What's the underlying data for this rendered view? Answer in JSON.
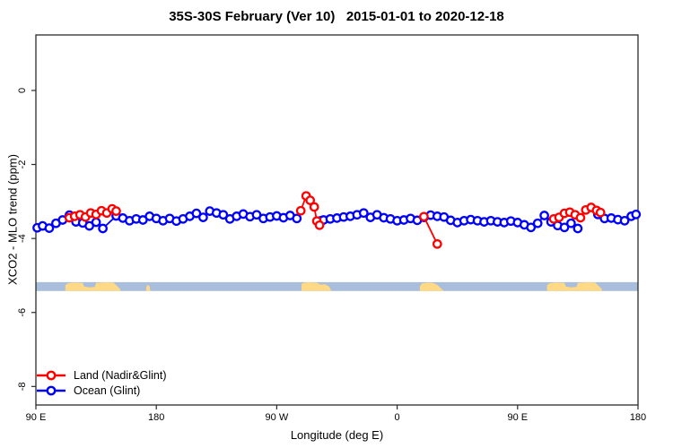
{
  "title": "35S-30S February (Ver 10)   2015-01-01 to 2020-12-18",
  "colors": {
    "land_series": "#ff0000",
    "ocean_series": "#0000ff",
    "strip_ocean": "#a9bedc",
    "strip_land": "#ffd985",
    "frame": "#2b2b2b",
    "text": "#000000"
  },
  "legend": {
    "items": [
      {
        "label": "Land (Nadir&Glint)",
        "color": "#ff0000"
      },
      {
        "label": "Ocean (Glint)",
        "color": "#0000ff"
      }
    ]
  },
  "chart_data": {
    "type": "line",
    "title": "35S-30S February (Ver 10)   2015-01-01 to 2020-12-18",
    "xlabel": "Longitude (deg E)",
    "ylabel": "XCO2 - MLO trend (ppm)",
    "x_axis": {
      "min": 90,
      "max": 540,
      "ticks": [
        {
          "lon": 90,
          "label": "90 E"
        },
        {
          "lon": 180,
          "label": "180"
        },
        {
          "lon": 270,
          "label": "90 W"
        },
        {
          "lon": 360,
          "label": "0"
        },
        {
          "lon": 450,
          "label": "90 E"
        },
        {
          "lon": 540,
          "label": "180"
        }
      ]
    },
    "y_axis": {
      "min": -8.5,
      "max": 1.5,
      "ticks": [
        {
          "value": 0,
          "label": "0"
        },
        {
          "value": -2,
          "label": "-2"
        },
        {
          "value": -4,
          "label": "-4"
        },
        {
          "value": -6,
          "label": "-6"
        },
        {
          "value": -8,
          "label": "-8"
        }
      ]
    },
    "legend_position": "bottom-left",
    "grid": false,
    "series": [
      {
        "name": "Ocean (Glint)",
        "color": "#0000ff",
        "marker": "open-circle",
        "segments": [
          [
            [
              91,
              -3.71
            ],
            [
              95,
              -3.66
            ],
            [
              100,
              -3.72
            ],
            [
              105,
              -3.59
            ],
            [
              110,
              -3.5
            ],
            [
              115,
              -3.37
            ],
            [
              120,
              -3.55
            ],
            [
              125,
              -3.58
            ],
            [
              130,
              -3.66
            ],
            [
              135,
              -3.56
            ],
            [
              140,
              -3.73
            ],
            [
              150,
              -3.39
            ],
            [
              155,
              -3.45
            ],
            [
              160,
              -3.52
            ],
            [
              165,
              -3.47
            ],
            [
              170,
              -3.5
            ],
            [
              175,
              -3.4
            ],
            [
              180,
              -3.46
            ],
            [
              185,
              -3.52
            ],
            [
              190,
              -3.46
            ],
            [
              195,
              -3.53
            ],
            [
              200,
              -3.47
            ],
            [
              205,
              -3.4
            ],
            [
              210,
              -3.32
            ],
            [
              215,
              -3.43
            ],
            [
              220,
              -3.26
            ],
            [
              225,
              -3.31
            ],
            [
              230,
              -3.36
            ],
            [
              235,
              -3.47
            ],
            [
              240,
              -3.4
            ],
            [
              245,
              -3.34
            ],
            [
              250,
              -3.41
            ],
            [
              255,
              -3.36
            ],
            [
              260,
              -3.46
            ],
            [
              265,
              -3.42
            ],
            [
              270,
              -3.39
            ],
            [
              275,
              -3.44
            ],
            [
              280,
              -3.38
            ],
            [
              285,
              -3.46
            ]
          ],
          [
            [
              303,
              -3.52
            ],
            [
              305,
              -3.5
            ],
            [
              310,
              -3.47
            ],
            [
              315,
              -3.45
            ],
            [
              320,
              -3.42
            ],
            [
              325,
              -3.4
            ],
            [
              330,
              -3.36
            ],
            [
              335,
              -3.31
            ],
            [
              340,
              -3.43
            ],
            [
              345,
              -3.36
            ],
            [
              350,
              -3.44
            ],
            [
              355,
              -3.47
            ],
            [
              360,
              -3.52
            ],
            [
              365,
              -3.5
            ],
            [
              370,
              -3.46
            ],
            [
              375,
              -3.51
            ],
            [
              380,
              -3.43
            ],
            [
              385,
              -3.37
            ],
            [
              390,
              -3.4
            ],
            [
              395,
              -3.42
            ],
            [
              400,
              -3.51
            ],
            [
              405,
              -3.57
            ],
            [
              410,
              -3.52
            ],
            [
              415,
              -3.49
            ],
            [
              420,
              -3.52
            ],
            [
              425,
              -3.55
            ],
            [
              430,
              -3.52
            ],
            [
              435,
              -3.55
            ],
            [
              440,
              -3.57
            ],
            [
              445,
              -3.53
            ],
            [
              450,
              -3.57
            ],
            [
              455,
              -3.63
            ],
            [
              460,
              -3.7
            ],
            [
              465,
              -3.59
            ],
            [
              470,
              -3.38
            ],
            [
              475,
              -3.55
            ],
            [
              480,
              -3.65
            ],
            [
              485,
              -3.7
            ],
            [
              490,
              -3.59
            ],
            [
              495,
              -3.73
            ]
          ],
          [
            [
              510,
              -3.35
            ],
            [
              515,
              -3.46
            ],
            [
              520,
              -3.45
            ],
            [
              525,
              -3.49
            ],
            [
              530,
              -3.52
            ],
            [
              535,
              -3.4
            ],
            [
              538.5,
              -3.35
            ]
          ]
        ]
      },
      {
        "name": "Land (Nadir&Glint)",
        "color": "#ff0000",
        "marker": "open-circle",
        "segments": [
          [
            [
              115,
              -3.44
            ],
            [
              119,
              -3.4
            ],
            [
              123,
              -3.36
            ],
            [
              127,
              -3.42
            ],
            [
              131,
              -3.31
            ],
            [
              135,
              -3.35
            ],
            [
              139,
              -3.25
            ],
            [
              143,
              -3.31
            ],
            [
              147,
              -3.2
            ],
            [
              150,
              -3.26
            ]
          ],
          [
            [
              288,
              -3.25
            ],
            [
              292,
              -2.85
            ],
            [
              295,
              -2.97
            ],
            [
              298,
              -3.15
            ],
            [
              300,
              -3.53
            ],
            [
              302,
              -3.64
            ]
          ],
          [
            [
              380,
              -3.41
            ],
            [
              390,
              -4.15
            ]
          ],
          [
            [
              477,
              -3.47
            ],
            [
              481,
              -3.43
            ],
            [
              485,
              -3.32
            ],
            [
              489,
              -3.29
            ],
            [
              493,
              -3.36
            ],
            [
              497,
              -3.44
            ],
            [
              501,
              -3.23
            ],
            [
              505,
              -3.16
            ],
            [
              509,
              -3.24
            ],
            [
              512,
              -3.3
            ]
          ]
        ]
      }
    ],
    "land_ocean_strip": {
      "description": "land/ocean map band for latitude 35S-30S",
      "y_range": [
        -5.18,
        -5.42
      ],
      "ocean_color": "#a9bedc",
      "land_color": "#ffd985",
      "land_patches": [
        {
          "name": "australia",
          "points": [
            [
              112,
              1
            ],
            [
              112,
              0.35
            ],
            [
              114,
              0.12
            ],
            [
              118,
              0.05
            ],
            [
              125,
              0.08
            ],
            [
              126,
              0.5
            ],
            [
              130,
              0.6
            ],
            [
              134,
              0.55
            ],
            [
              135,
              0.08
            ],
            [
              142,
              0.02
            ],
            [
              148,
              0.05
            ],
            [
              153,
              0.78
            ],
            [
              153,
              1
            ]
          ]
        },
        {
          "name": "new-zealand-tip",
          "points": [
            [
              172.5,
              1
            ],
            [
              172.5,
              0.55
            ],
            [
              173.5,
              0.28
            ],
            [
              175,
              0.5
            ],
            [
              175.5,
              1
            ]
          ]
        },
        {
          "name": "south-america",
          "points": [
            [
              288.5,
              1
            ],
            [
              288.5,
              0.2
            ],
            [
              290,
              0.08
            ],
            [
              293,
              0.02
            ],
            [
              300,
              0.06
            ],
            [
              303,
              0.28
            ],
            [
              306,
              0.22
            ],
            [
              309,
              0.5
            ],
            [
              310.5,
              0.85
            ],
            [
              310.5,
              1
            ]
          ]
        },
        {
          "name": "south-africa",
          "points": [
            [
              377,
              1
            ],
            [
              377,
              0.5
            ],
            [
              378.5,
              0.15
            ],
            [
              383,
              0.05
            ],
            [
              387,
              0.1
            ],
            [
              390,
              0.3
            ],
            [
              392,
              0.6
            ],
            [
              394.5,
              0.95
            ],
            [
              394.5,
              1
            ]
          ]
        },
        {
          "name": "australia-2",
          "points": [
            [
              472,
              1
            ],
            [
              472,
              0.35
            ],
            [
              474,
              0.12
            ],
            [
              478,
              0.05
            ],
            [
              485,
              0.08
            ],
            [
              486,
              0.5
            ],
            [
              490,
              0.6
            ],
            [
              494,
              0.55
            ],
            [
              495,
              0.08
            ],
            [
              502,
              0.02
            ],
            [
              508,
              0.05
            ],
            [
              513,
              0.78
            ],
            [
              513,
              1
            ]
          ]
        }
      ]
    }
  }
}
